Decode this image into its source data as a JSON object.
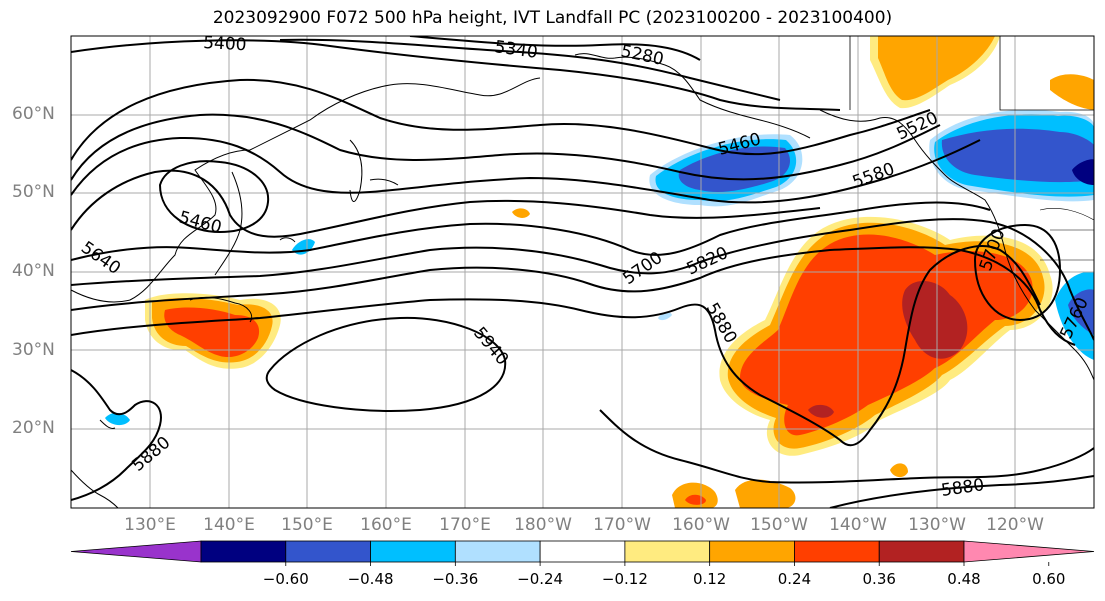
{
  "title": "2023092900 F072 500 hPa height, IVT Landfall PC (2023100200 - 2023100400)",
  "lat_labels": [
    "60°N",
    "50°N",
    "40°N",
    "30°N",
    "20°N"
  ],
  "lon_labels": [
    "130°E",
    "140°E",
    "150°E",
    "160°E",
    "170°E",
    "180°W",
    "170°W",
    "160°W",
    "150°W",
    "140°W",
    "130°W",
    "120°W"
  ],
  "contour_labels": [
    "5400",
    "5340",
    "5280",
    "5460",
    "5460",
    "5520",
    "5580",
    "5640",
    "5700",
    "5820",
    "5700",
    "5940",
    "5880",
    "5880",
    "5880",
    "5760"
  ],
  "colorbar": {
    "ticks": [
      "−0.60",
      "−0.48",
      "−0.36",
      "−0.24",
      "−0.12",
      "0.12",
      "0.24",
      "0.36",
      "0.48",
      "0.60"
    ],
    "colors": [
      "#9933cc",
      "#000080",
      "#3355cc",
      "#00bfff",
      "#b0e0ff",
      "#ffffff",
      "#ffeb80",
      "#ffa500",
      "#ff3f00",
      "#b22222",
      "#ff88b0"
    ]
  },
  "shading_colors": {
    "yellow": "#ffeb80",
    "orange": "#ffa500",
    "red": "#ff3f00",
    "darkred": "#b22222",
    "lightblue": "#b0e0ff",
    "cyan": "#00bfff",
    "blue": "#3355cc",
    "navy": "#000080"
  }
}
